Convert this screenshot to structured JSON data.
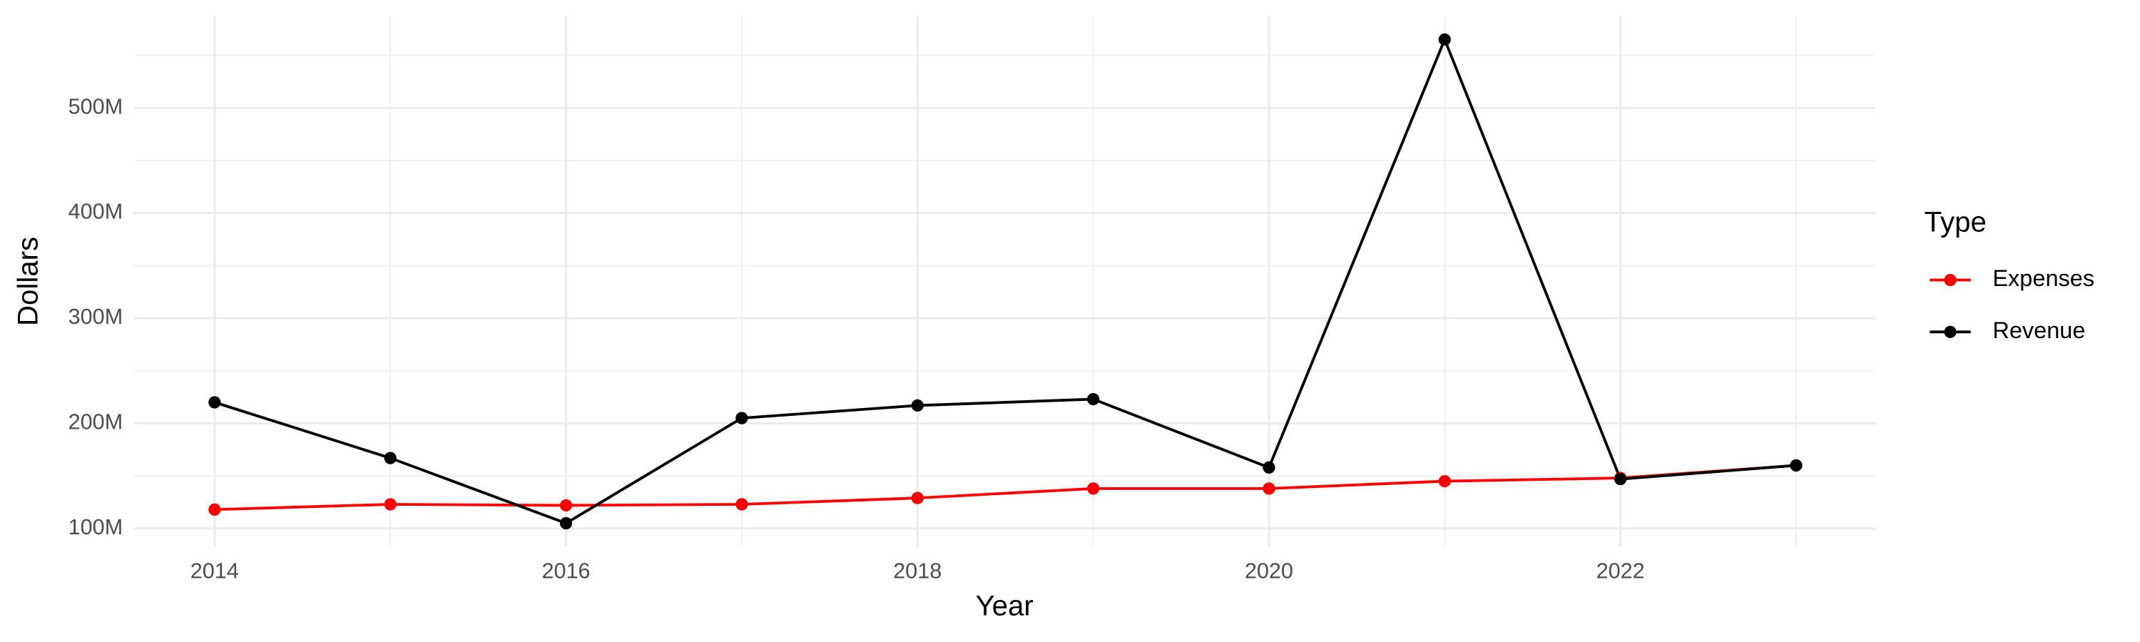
{
  "chart_data": {
    "type": "line",
    "x_label": "Year",
    "y_label": "Dollars",
    "legend_title": "Type",
    "legend": "right",
    "grid": true,
    "x": [
      2014,
      2015,
      2016,
      2017,
      2018,
      2019,
      2020,
      2021,
      2022,
      2023
    ],
    "series": [
      {
        "name": "Expenses",
        "color": "#ff0000",
        "values": [
          118000000,
          123000000,
          122000000,
          123000000,
          129000000,
          138000000,
          138000000,
          145000000,
          148000000,
          160000000
        ]
      },
      {
        "name": "Revenue",
        "color": "#000000",
        "values": [
          220000000,
          167000000,
          105000000,
          205000000,
          217000000,
          223000000,
          158000000,
          565000000,
          147000000,
          160000000
        ]
      }
    ],
    "xlim": [
      2013.54,
      2023.45
    ],
    "xticks": [
      2014,
      2016,
      2018,
      2020,
      2022
    ],
    "ylim": [
      83000000,
      587000000
    ],
    "yticks": [
      {
        "value": 100000000,
        "label": "100M"
      },
      {
        "value": 200000000,
        "label": "200M"
      },
      {
        "value": 300000000,
        "label": "300M"
      },
      {
        "value": 400000000,
        "label": "400M"
      },
      {
        "value": 500000000,
        "label": "500M"
      }
    ]
  }
}
